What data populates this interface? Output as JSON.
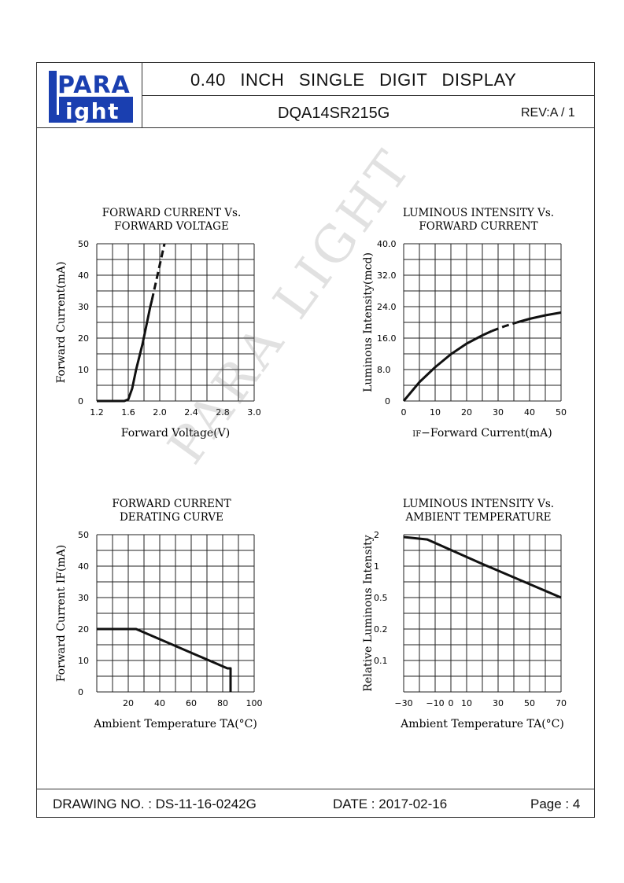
{
  "logo": {
    "line1": "PARA",
    "line2": "ight"
  },
  "header": {
    "title": "0.40 INCH SINGLE DIGIT DISPLAY",
    "part_number": "DQA14SR215G",
    "revision": "REV:A / 1"
  },
  "footer": {
    "drawing_no": "DRAWING NO. : DS-11-16-0242G",
    "date": "DATE : 2017-02-16",
    "page": "Page : 4"
  },
  "watermark": "PARA LIGHT",
  "colors": {
    "line": "#111111",
    "grid": "#222222",
    "logo_blue": "#1a3fb0"
  },
  "chart_data": [
    {
      "type": "line",
      "title_lines": [
        "FORWARD CURRENT Vs.",
        "FORWARD VOLTAGE"
      ],
      "xlabel": "Forward Voltage(V)",
      "ylabel": "Forward Current(mA)",
      "x_ticks": [
        "1.2",
        "1.6",
        "2.0",
        "2.4",
        "2.8",
        "3.0"
      ],
      "y_ticks": [
        "0",
        "10",
        "20",
        "30",
        "40",
        "50"
      ],
      "xlim": [
        1.2,
        3.2
      ],
      "ylim": [
        0,
        50
      ],
      "series": [
        {
          "style": "solid",
          "points": [
            [
              1.2,
              0
            ],
            [
              1.55,
              0
            ],
            [
              1.6,
              0.5
            ],
            [
              1.65,
              4
            ],
            [
              1.7,
              10
            ],
            [
              1.78,
              18
            ],
            [
              1.88,
              30
            ],
            [
              1.9,
              32
            ]
          ]
        },
        {
          "style": "dashed",
          "points": [
            [
              1.9,
              32
            ],
            [
              2.06,
              50
            ]
          ]
        }
      ]
    },
    {
      "type": "line",
      "title_lines": [
        "LUMINOUS INTENSITY Vs.",
        "FORWARD CURRENT"
      ],
      "xlabel_prefix": "IF",
      "xlabel": "−Forward Current(mA)",
      "ylabel": "Luminous Intensity(mcd)",
      "x_ticks": [
        "0",
        "10",
        "20",
        "30",
        "40",
        "50"
      ],
      "y_ticks": [
        "0",
        "8.0",
        "16.0",
        "24.0",
        "32.0",
        "40.0"
      ],
      "xlim": [
        0,
        50
      ],
      "ylim": [
        0,
        40
      ],
      "series": [
        {
          "style": "solid",
          "points": [
            [
              0,
              0
            ],
            [
              5,
              4.8
            ],
            [
              10,
              8.6
            ],
            [
              15,
              11.9
            ],
            [
              20,
              14.6
            ],
            [
              25,
              16.7
            ],
            [
              28,
              17.8
            ]
          ]
        },
        {
          "style": "dashed",
          "points": [
            [
              28,
              17.8
            ],
            [
              32,
              19.0
            ],
            [
              36,
              20.0
            ]
          ]
        },
        {
          "style": "solid",
          "points": [
            [
              36,
              20.0
            ],
            [
              40,
              20.9
            ],
            [
              45,
              21.8
            ],
            [
              50,
              22.5
            ]
          ]
        }
      ]
    },
    {
      "type": "line",
      "title_lines": [
        "FORWARD CURRENT",
        "DERATING CURVE"
      ],
      "xlabel": "Ambient Temperature TA(°C)",
      "ylabel": "Forward Current IF(mA)",
      "x_ticks": [
        "20",
        "40",
        "60",
        "80",
        "100"
      ],
      "y_ticks": [
        "0",
        "10",
        "20",
        "30",
        "40",
        "50"
      ],
      "xlim": [
        0,
        100
      ],
      "ylim": [
        0,
        50
      ],
      "series": [
        {
          "style": "solid",
          "points": [
            [
              0,
              20
            ],
            [
              25,
              20
            ],
            [
              83,
              7.5
            ],
            [
              85,
              7.5
            ],
            [
              85,
              0
            ]
          ]
        }
      ]
    },
    {
      "type": "line",
      "title_lines": [
        "LUMINOUS INTENSITY Vs.",
        "AMBIENT TEMPERATURE"
      ],
      "xlabel": "Ambient Temperature TA(°C)",
      "ylabel": "Relative Luminous Intensity",
      "x_ticks": [
        "−30",
        "−10",
        "0",
        "10",
        "30",
        "50",
        "70"
      ],
      "y_ticks": [
        "0.1",
        "0.2",
        "0.5",
        "1",
        "2"
      ],
      "xlim": [
        -30,
        70
      ],
      "y_scale": "log",
      "series": [
        {
          "style": "solid",
          "points": [
            [
              -30,
              1.9
            ],
            [
              -15,
              1.8
            ],
            [
              20,
              1.05
            ],
            [
              70,
              0.5
            ]
          ]
        }
      ]
    }
  ]
}
